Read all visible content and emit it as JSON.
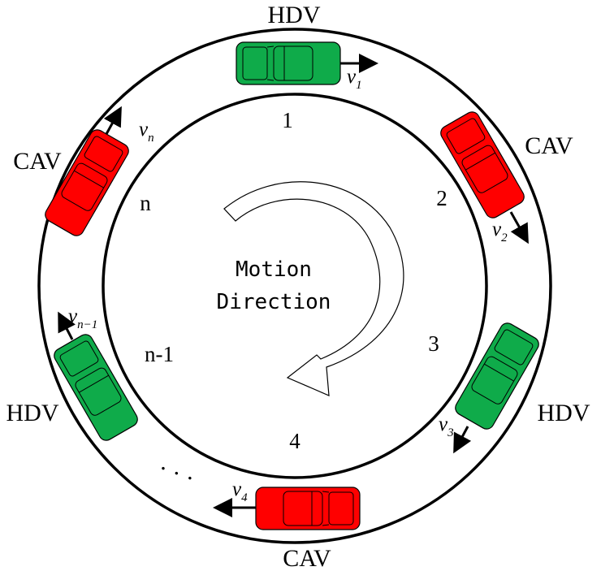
{
  "vehicles": [
    {
      "type": "HDV",
      "position": "1",
      "velocity": "v",
      "velocity_sub": "1",
      "color": "#0fab4a"
    },
    {
      "type": "CAV",
      "position": "2",
      "velocity": "v",
      "velocity_sub": "2",
      "color": "#ff0000"
    },
    {
      "type": "HDV",
      "position": "3",
      "velocity": "v",
      "velocity_sub": "3",
      "color": "#0fab4a"
    },
    {
      "type": "CAV",
      "position": "4",
      "velocity": "v",
      "velocity_sub": "4",
      "color": "#ff0000"
    },
    {
      "type": "HDV",
      "position": "n-1",
      "velocity": "v",
      "velocity_sub": "n−1",
      "color": "#0fab4a"
    },
    {
      "type": "CAV",
      "position": "n",
      "velocity": "v",
      "velocity_sub": "n",
      "color": "#ff0000"
    }
  ],
  "ellipsis": "· · ·",
  "motion": {
    "line1": "Motion",
    "line2": "Direction"
  }
}
